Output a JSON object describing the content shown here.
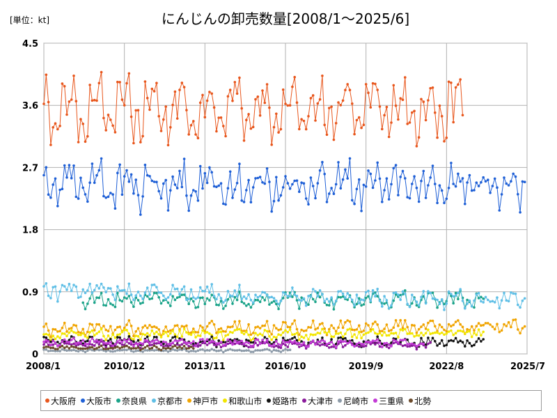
{
  "chart_data": {
    "type": "line",
    "title": "にんじんの卸売数量[2008/1～2025/6]",
    "unit_label": "[単位：kt]",
    "ylim": [
      0,
      4.5
    ],
    "y_ticks": [
      "0",
      "0.9",
      "1.8",
      "2.7",
      "3.6",
      "4.5"
    ],
    "x_range": [
      "2008-01",
      "2025-07"
    ],
    "x_ticks": [
      "2008/1",
      "2010/12",
      "2013/11",
      "2016/10",
      "2019/9",
      "2022/8",
      "2025/7"
    ],
    "grid": true,
    "legend_position": "bottom",
    "series": [
      {
        "name": "大阪府",
        "color": "#e8561c",
        "start": "2008-01",
        "end": "2023-03",
        "mean": 3.55,
        "amp": 0.5,
        "noise": 0.18,
        "trend": 0.0
      },
      {
        "name": "大阪市",
        "color": "#1e5fd6",
        "start": "2008-01",
        "end": "2025-06",
        "mean": 2.45,
        "amp": 0.3,
        "noise": 0.2,
        "trend": 0.0
      },
      {
        "name": "奈良県",
        "color": "#1aa389",
        "start": "2009-06",
        "end": "2023-12",
        "mean": 0.78,
        "amp": 0.12,
        "noise": 0.06,
        "trend": 0.0
      },
      {
        "name": "京都市",
        "color": "#5fbfe6",
        "start": "2008-01",
        "end": "2025-06",
        "mean": 0.92,
        "amp": 0.1,
        "noise": 0.08,
        "trend": -0.15
      },
      {
        "name": "神戸市",
        "color": "#f0a400",
        "start": "2008-01",
        "end": "2025-06",
        "mean": 0.36,
        "amp": 0.08,
        "noise": 0.06,
        "trend": 0.05
      },
      {
        "name": "和歌山市",
        "color": "#f2e600",
        "start": "2008-01",
        "end": "2023-12",
        "mean": 0.27,
        "amp": 0.05,
        "noise": 0.05,
        "trend": 0.03
      },
      {
        "name": "姫路市",
        "color": "#111111",
        "start": "2008-01",
        "end": "2023-12",
        "mean": 0.19,
        "amp": 0.06,
        "noise": 0.04,
        "trend": -0.02
      },
      {
        "name": "大津市",
        "color": "#8a1a9b",
        "start": "2008-01",
        "end": "2022-01",
        "mean": 0.14,
        "amp": 0.04,
        "noise": 0.03,
        "trend": -0.02
      },
      {
        "name": "尼崎市",
        "color": "#8c9aa8",
        "start": "2008-01",
        "end": "2016-12",
        "mean": 0.05,
        "amp": 0.02,
        "noise": 0.01,
        "trend": 0.0
      },
      {
        "name": "三重県",
        "color": "#c33ad6",
        "start": "2008-01",
        "end": "2021-10",
        "mean": 0.18,
        "amp": 0.05,
        "noise": 0.03,
        "trend": -0.04
      },
      {
        "name": "北勢",
        "color": "#6b4a2a",
        "start": "2008-01",
        "end": "2013-06",
        "mean": 0.09,
        "amp": 0.02,
        "noise": 0.02,
        "trend": 0.0
      }
    ]
  }
}
